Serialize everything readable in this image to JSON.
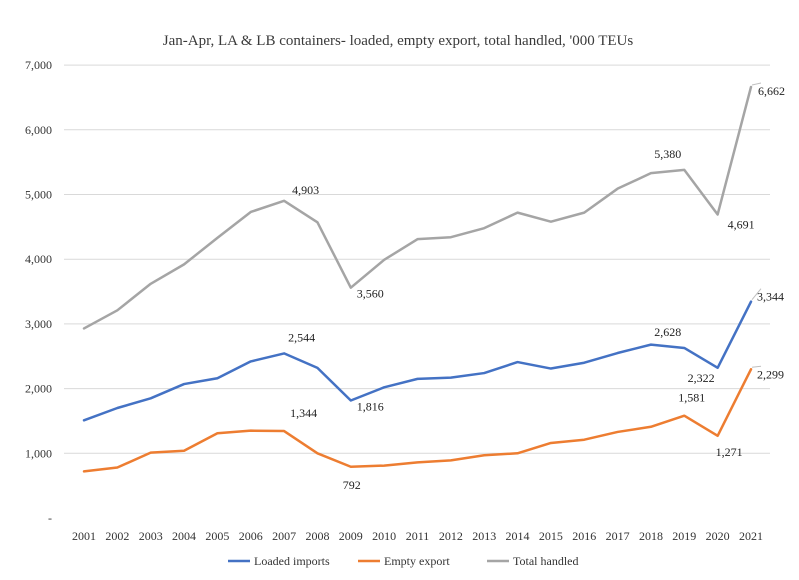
{
  "chart_data": {
    "type": "line",
    "title": "Jan-Apr, LA & LB containers- loaded, empty export, total handled, '000 TEUs",
    "xlabel": "",
    "ylabel": "",
    "categories": [
      "2001",
      "2002",
      "2003",
      "2004",
      "2005",
      "2006",
      "2007",
      "2008",
      "2009",
      "2010",
      "2011",
      "2012",
      "2013",
      "2014",
      "2015",
      "2016",
      "2017",
      "2018",
      "2019",
      "2020",
      "2021"
    ],
    "ylim": [
      0,
      7000
    ],
    "yticks": [
      0,
      1000,
      2000,
      3000,
      4000,
      5000,
      6000,
      7000
    ],
    "ytick_labels": [
      "-",
      "1,000",
      "2,000",
      "3,000",
      "4,000",
      "5,000",
      "6,000",
      "7,000"
    ],
    "grid": true,
    "legend_position": "bottom",
    "series": [
      {
        "name": "Loaded imports",
        "color": "#4472c4",
        "values": [
          1510,
          1700,
          1850,
          2070,
          2160,
          2420,
          2544,
          2320,
          1816,
          2020,
          2150,
          2170,
          2240,
          2410,
          2310,
          2400,
          2550,
          2680,
          2628,
          2322,
          3344
        ],
        "labels": [
          {
            "index": 6,
            "text": "2,544"
          },
          {
            "index": 8,
            "text": "1,816"
          },
          {
            "index": 18,
            "text": "2,628"
          },
          {
            "index": 19,
            "text": "2,322"
          },
          {
            "index": 20,
            "text": "3,344"
          }
        ]
      },
      {
        "name": "Empty export",
        "color": "#ed7d31",
        "values": [
          720,
          780,
          1010,
          1040,
          1310,
          1350,
          1344,
          1000,
          792,
          810,
          860,
          890,
          970,
          1000,
          1160,
          1210,
          1330,
          1410,
          1581,
          1271,
          2299
        ],
        "labels": [
          {
            "index": 6,
            "text": "1,344"
          },
          {
            "index": 8,
            "text": "792"
          },
          {
            "index": 18,
            "text": "1,581"
          },
          {
            "index": 19,
            "text": "1,271"
          },
          {
            "index": 20,
            "text": "2,299"
          }
        ]
      },
      {
        "name": "Total handled",
        "color": "#a5a5a5",
        "values": [
          2930,
          3210,
          3620,
          3920,
          4330,
          4730,
          4903,
          4570,
          3560,
          3990,
          4310,
          4340,
          4480,
          4720,
          4580,
          4720,
          5090,
          5330,
          5380,
          4691,
          6662
        ],
        "labels": [
          {
            "index": 6,
            "text": "4,903"
          },
          {
            "index": 8,
            "text": "3,560"
          },
          {
            "index": 18,
            "text": "5,380"
          },
          {
            "index": 19,
            "text": "4,691"
          },
          {
            "index": 20,
            "text": "6,662"
          }
        ]
      }
    ]
  }
}
